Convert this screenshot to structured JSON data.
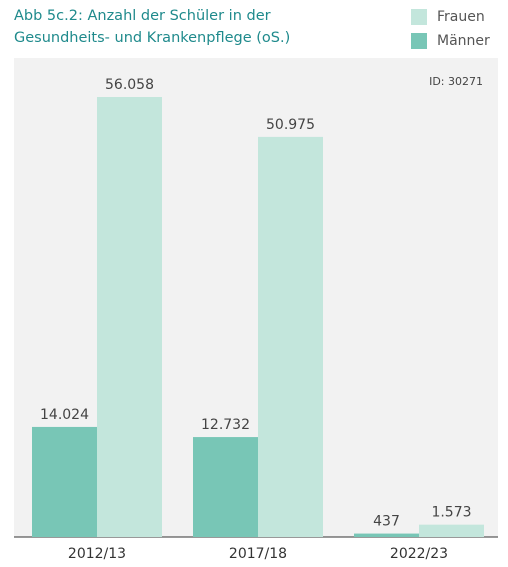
{
  "chart_data": {
    "type": "bar",
    "title": [
      "Abb 5c.2: Anzahl der Schüler in der",
      "Gesundheits- und Krankenpflege (oS.)"
    ],
    "annotation": "ID: 30271",
    "categories": [
      "2012/13",
      "2017/18",
      "2022/23"
    ],
    "series": [
      {
        "name": "Männer",
        "color": "#78c6b6",
        "values": [
          14024,
          12732,
          437
        ],
        "value_labels": [
          "14.024",
          "12.732",
          "437"
        ]
      },
      {
        "name": "Frauen",
        "color": "#c3e6dc",
        "values": [
          56058,
          50975,
          1573
        ],
        "value_labels": [
          "56.058",
          "50.975",
          "1.573"
        ]
      }
    ]
  }
}
